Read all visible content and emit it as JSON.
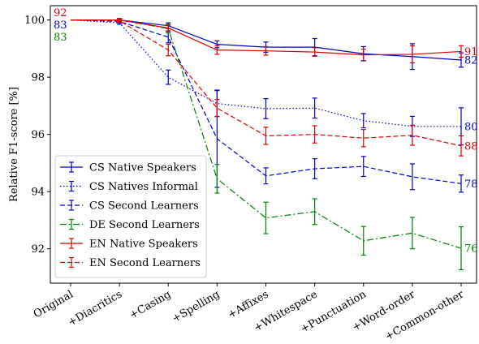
{
  "chart_data": {
    "type": "line",
    "xlabel": "",
    "ylabel": "Relative F1-score [%]",
    "ylim": [
      90.8,
      100.5
    ],
    "yticks": [
      92,
      94,
      96,
      98,
      100
    ],
    "categories": [
      "Original",
      "+Diacritics",
      "+Casing",
      "+Spelling",
      "+Affixes",
      "+Whitespace",
      "+Punctuation",
      "+Word-order",
      "+Common-other"
    ],
    "legend_position": "lower-left",
    "series": [
      {
        "name": "CS Native Speakers",
        "color": "#0000cc",
        "dash": "solid",
        "values": [
          100,
          100,
          99.8,
          99.15,
          99.05,
          99.05,
          98.82,
          98.72,
          98.6
        ],
        "errors": [
          0,
          0.05,
          0.1,
          0.12,
          0.18,
          0.3,
          0.25,
          0.45,
          0.25
        ],
        "end_label": "82",
        "start_label": "83"
      },
      {
        "name": "CS Natives Informal",
        "color": "#0000cc",
        "dash": "dotted",
        "values": [
          100,
          99.9,
          98.0,
          97.08,
          96.9,
          96.92,
          96.48,
          96.28,
          96.28
        ],
        "errors": [
          0,
          0.05,
          0.25,
          0.45,
          0.35,
          0.35,
          0.25,
          0.35,
          0.65
        ],
        "end_label": "80"
      },
      {
        "name": "CS Second Learners",
        "color": "#0000cc",
        "dash": "dashed",
        "values": [
          100,
          99.95,
          99.4,
          95.85,
          94.55,
          94.8,
          94.88,
          94.52,
          94.28
        ],
        "errors": [
          0,
          0.05,
          0.2,
          1.7,
          0.28,
          0.35,
          0.35,
          0.45,
          0.3
        ],
        "end_label": "78"
      },
      {
        "name": "DE Second Learners",
        "color": "#008000",
        "dash": "dashdot",
        "values": [
          100,
          100,
          99.7,
          94.45,
          93.08,
          93.3,
          92.28,
          92.55,
          92.02
        ],
        "errors": [
          0,
          0.05,
          0.15,
          0.5,
          0.55,
          0.45,
          0.5,
          0.55,
          0.75
        ],
        "end_label": "76",
        "start_label": "83"
      },
      {
        "name": "EN Native Speakers",
        "color": "#dd0000",
        "dash": "solid",
        "values": [
          100,
          100,
          99.72,
          98.95,
          98.92,
          98.88,
          98.78,
          98.8,
          98.9
        ],
        "errors": [
          0,
          0.05,
          0.1,
          0.15,
          0.15,
          0.15,
          0.2,
          0.3,
          0.2
        ],
        "end_label": "91",
        "start_label": "92"
      },
      {
        "name": "EN Second Learners",
        "color": "#dd0000",
        "dash": "dashed",
        "values": [
          100,
          99.97,
          98.95,
          96.92,
          95.95,
          96.0,
          95.87,
          95.97,
          95.6
        ],
        "errors": [
          0,
          0.05,
          0.2,
          0.3,
          0.3,
          0.3,
          0.3,
          0.35,
          0.35
        ],
        "end_label": "88"
      }
    ]
  }
}
